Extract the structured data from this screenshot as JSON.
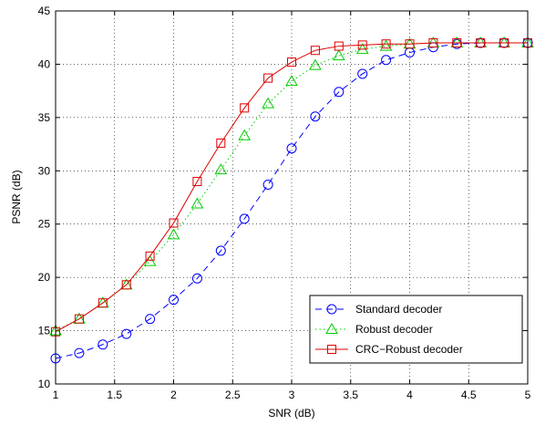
{
  "chart_data": {
    "type": "line",
    "xlabel": "SNR (dB)",
    "ylabel": "PSNR (dB)",
    "xlim": [
      1,
      5
    ],
    "ylim": [
      10,
      45
    ],
    "xticks": [
      "1",
      "1.5",
      "2",
      "2.5",
      "3",
      "3.5",
      "4",
      "4.5",
      "5"
    ],
    "yticks": [
      "10",
      "15",
      "20",
      "25",
      "30",
      "35",
      "40",
      "45"
    ],
    "grid": true,
    "legend_position": "bottom-right",
    "x": [
      1,
      1.2,
      1.4,
      1.6,
      1.8,
      2,
      2.2,
      2.4,
      2.6,
      2.8,
      3,
      3.2,
      3.4,
      3.6,
      3.8,
      4,
      4.2,
      4.4,
      4.6,
      4.8,
      5
    ],
    "series": [
      {
        "name": "Standard decoder",
        "color": "#0000ff",
        "marker": "circle",
        "line": "dashed",
        "values": [
          12.4,
          12.9,
          13.7,
          14.7,
          16.1,
          17.9,
          19.9,
          22.5,
          25.5,
          28.7,
          32.1,
          35.1,
          37.4,
          39.1,
          40.4,
          41.1,
          41.6,
          41.9,
          42.0,
          42.0,
          42.0
        ]
      },
      {
        "name": "Robust decoder",
        "color": "#00cc00",
        "marker": "triangle",
        "line": "dotted",
        "values": [
          15.0,
          16.1,
          17.6,
          19.3,
          21.5,
          24.0,
          26.9,
          30.1,
          33.3,
          36.3,
          38.4,
          39.9,
          40.8,
          41.4,
          41.7,
          41.9,
          42.0,
          42.0,
          42.0,
          42.0,
          42.0
        ]
      },
      {
        "name": "CRC−Robust decoder",
        "color": "#dd0000",
        "marker": "square",
        "line": "solid",
        "values": [
          14.9,
          16.1,
          17.6,
          19.3,
          22.0,
          25.1,
          29.0,
          32.6,
          35.9,
          38.7,
          40.2,
          41.3,
          41.7,
          41.8,
          41.9,
          41.9,
          42.0,
          42.0,
          42.0,
          42.0,
          42.0
        ]
      }
    ]
  }
}
